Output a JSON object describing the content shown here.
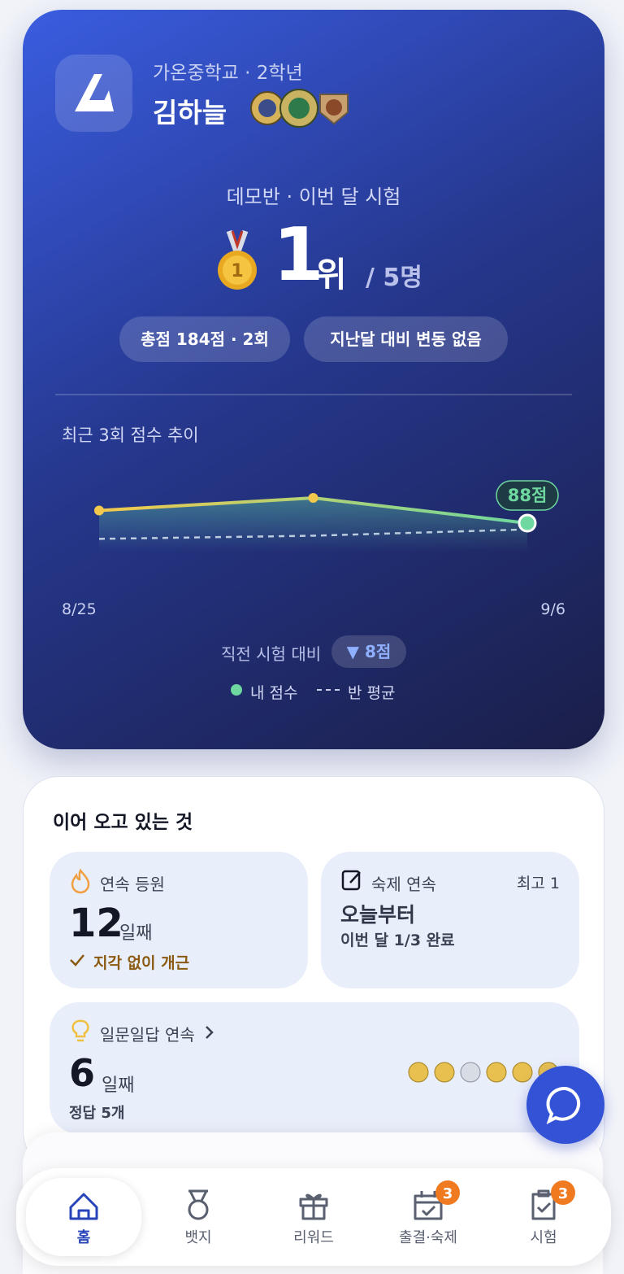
{
  "profile": {
    "school": "가온중학교 · 2학년",
    "name": "김하늘"
  },
  "rank": {
    "context": "데모반 · 이번 달 시험",
    "position": 1,
    "suffix": "위",
    "total": "/ 5명",
    "pills": [
      "총점 184점 · 2회",
      "지난달 대비 변동 없음"
    ]
  },
  "chart_data": {
    "type": "line",
    "title": "최근 3회 점수 추이",
    "x": [
      "8/25",
      null,
      "9/6"
    ],
    "ylim": [
      80,
      100
    ],
    "series": [
      {
        "name": "내 점수",
        "color": "#6ed8a0",
        "values": [
          92,
          96,
          88
        ],
        "value_labels": [
          null,
          null,
          "88점"
        ]
      },
      {
        "name": "반 평균",
        "color": "#c8cce8",
        "values": [
          83,
          84,
          86
        ]
      }
    ],
    "comparison": {
      "label": "직전 시험 대비",
      "value": "▼ 8점"
    }
  },
  "streaks": {
    "title": "이어 오고 있는 것",
    "cards": [
      {
        "label": "연속 등원",
        "value": 12,
        "unit": "일째",
        "note": "지각 없이 개근"
      },
      {
        "label": "숙제 연속",
        "best": "최고 1",
        "value": "오늘부터",
        "note": "이번 달 1/3 완료"
      },
      {
        "label": "일문일답 연속",
        "value": 6,
        "unit": "일째",
        "note": "정답 5개"
      }
    ]
  },
  "nav": [
    {
      "label": "홈"
    },
    {
      "label": "뱃지"
    },
    {
      "label": "리워드"
    },
    {
      "label": "출결·숙제",
      "badge": 3
    },
    {
      "label": "시험",
      "badge": 3
    }
  ]
}
